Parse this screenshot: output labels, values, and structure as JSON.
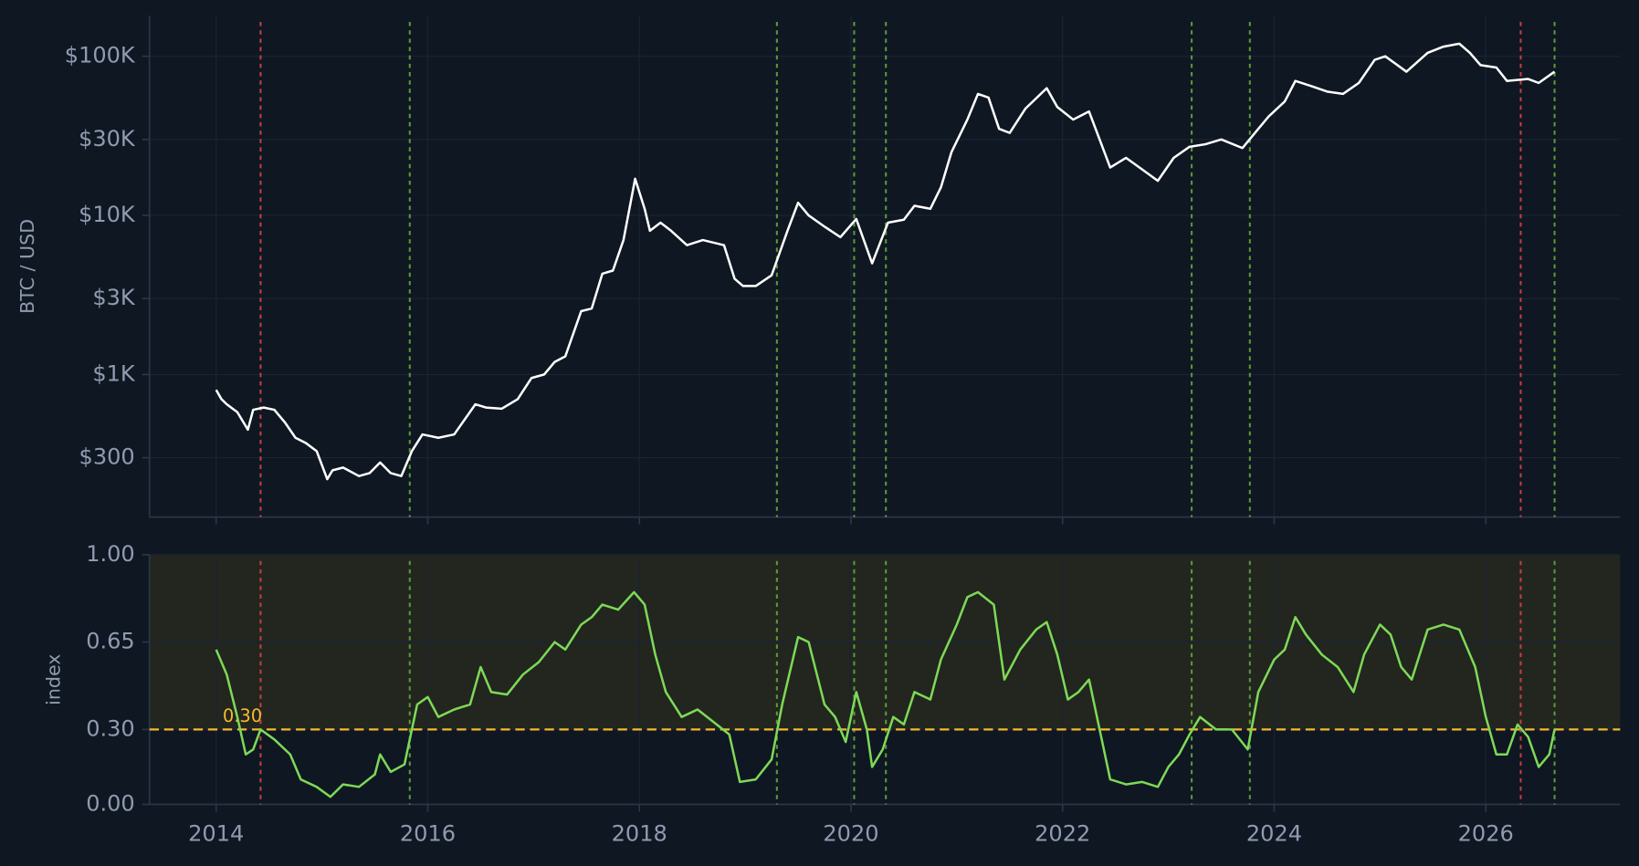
{
  "chart_data": [
    {
      "type": "line",
      "ylabel": "BTC / USD",
      "ylog": true,
      "grid": true,
      "xlim": [
        2013.37,
        2027.27
      ],
      "ylim": [
        127,
        180000
      ],
      "xticks": [
        2014,
        2016,
        2018,
        2020,
        2022,
        2024,
        2026
      ],
      "yticks": [
        {
          "value": 300,
          "label": "$300"
        },
        {
          "value": 1000,
          "label": "$1K"
        },
        {
          "value": 3000,
          "label": "$3K"
        },
        {
          "value": 10000,
          "label": "$10K"
        },
        {
          "value": 30000,
          "label": "$30K"
        },
        {
          "value": 100000,
          "label": "$100K"
        }
      ],
      "vlines": [
        {
          "x": 2014.42,
          "color": "#c0403f"
        },
        {
          "x": 2015.83,
          "color": "#5a9a3a"
        },
        {
          "x": 2019.3,
          "color": "#5a9a3a"
        },
        {
          "x": 2020.03,
          "color": "#5a9a3a"
        },
        {
          "x": 2020.33,
          "color": "#5a9a3a"
        },
        {
          "x": 2023.22,
          "color": "#5a9a3a"
        },
        {
          "x": 2023.77,
          "color": "#5a9a3a"
        },
        {
          "x": 2026.33,
          "color": "#c0403f"
        },
        {
          "x": 2026.65,
          "color": "#5a9a3a"
        }
      ],
      "x": [
        2014.0,
        2014.05,
        2014.1,
        2014.2,
        2014.3,
        2014.35,
        2014.45,
        2014.55,
        2014.65,
        2014.75,
        2014.85,
        2014.95,
        2015.05,
        2015.1,
        2015.2,
        2015.35,
        2015.45,
        2015.55,
        2015.65,
        2015.75,
        2015.85,
        2015.95,
        2016.1,
        2016.25,
        2016.45,
        2016.55,
        2016.7,
        2016.85,
        2016.98,
        2017.1,
        2017.2,
        2017.3,
        2017.45,
        2017.55,
        2017.65,
        2017.75,
        2017.85,
        2017.96,
        2018.05,
        2018.1,
        2018.2,
        2018.3,
        2018.45,
        2018.6,
        2018.8,
        2018.9,
        2018.98,
        2019.1,
        2019.25,
        2019.4,
        2019.5,
        2019.6,
        2019.75,
        2019.9,
        2020.05,
        2020.2,
        2020.35,
        2020.5,
        2020.6,
        2020.75,
        2020.85,
        2020.95,
        2021.1,
        2021.2,
        2021.3,
        2021.4,
        2021.5,
        2021.65,
        2021.85,
        2021.95,
        2022.1,
        2022.25,
        2022.35,
        2022.45,
        2022.6,
        2022.75,
        2022.9,
        2023.05,
        2023.2,
        2023.35,
        2023.5,
        2023.7,
        2023.85,
        2023.95,
        2024.1,
        2024.2,
        2024.35,
        2024.5,
        2024.65,
        2024.8,
        2024.95,
        2025.05,
        2025.25,
        2025.45,
        2025.6,
        2025.75,
        2025.85,
        2025.95,
        2026.1,
        2026.2,
        2026.4,
        2026.5,
        2026.65
      ],
      "series": [
        {
          "color": "#ffffff",
          "values": [
            800,
            700,
            650,
            580,
            450,
            600,
            620,
            600,
            500,
            400,
            370,
            330,
            220,
            250,
            260,
            230,
            240,
            280,
            240,
            230,
            330,
            420,
            400,
            420,
            650,
            620,
            610,
            700,
            950,
            1000,
            1200,
            1300,
            2500,
            2600,
            4300,
            4500,
            7000,
            17000,
            11000,
            8000,
            9000,
            8000,
            6500,
            7000,
            6500,
            4000,
            3600,
            3600,
            4200,
            8000,
            12000,
            10000,
            8500,
            7300,
            9500,
            5000,
            9000,
            9400,
            11500,
            11000,
            15000,
            25000,
            40000,
            58000,
            55000,
            35000,
            33000,
            47000,
            63000,
            48000,
            40000,
            45000,
            30000,
            20000,
            23000,
            19500,
            16500,
            23000,
            27000,
            28000,
            30000,
            26500,
            35000,
            42000,
            52000,
            70000,
            65000,
            60000,
            58000,
            68000,
            95000,
            100000,
            80000,
            105000,
            115000,
            120000,
            105000,
            88000,
            85000,
            70000,
            72000,
            68000,
            80000
          ]
        }
      ]
    },
    {
      "type": "line",
      "ylabel": "index",
      "grid": true,
      "xlim": [
        2013.37,
        2027.27
      ],
      "ylim": [
        0,
        1
      ],
      "xticks": [
        2014,
        2016,
        2018,
        2020,
        2022,
        2024,
        2026
      ],
      "yticks": [
        {
          "value": 0,
          "label": "0.00"
        },
        {
          "value": 0.3,
          "label": "0.30"
        },
        0.65,
        {
          "value": 1,
          "label": "1.00"
        }
      ],
      "threshold": {
        "value": 0.3,
        "label": "0.30",
        "color": "#f5b92e"
      },
      "vlines": [
        {
          "x": 2014.42,
          "color": "#c0403f"
        },
        {
          "x": 2015.83,
          "color": "#5a9a3a"
        },
        {
          "x": 2019.3,
          "color": "#5a9a3a"
        },
        {
          "x": 2020.03,
          "color": "#5a9a3a"
        },
        {
          "x": 2020.33,
          "color": "#5a9a3a"
        },
        {
          "x": 2023.22,
          "color": "#5a9a3a"
        },
        {
          "x": 2023.77,
          "color": "#5a9a3a"
        },
        {
          "x": 2026.33,
          "color": "#c0403f"
        },
        {
          "x": 2026.65,
          "color": "#5a9a3a"
        }
      ],
      "x": [
        2014.0,
        2014.1,
        2014.2,
        2014.28,
        2014.35,
        2014.42,
        2014.55,
        2014.7,
        2014.8,
        2014.95,
        2015.08,
        2015.2,
        2015.35,
        2015.5,
        2015.55,
        2015.65,
        2015.78,
        2015.9,
        2016.0,
        2016.1,
        2016.25,
        2016.4,
        2016.5,
        2016.6,
        2016.75,
        2016.9,
        2017.05,
        2017.2,
        2017.3,
        2017.45,
        2017.55,
        2017.65,
        2017.8,
        2017.95,
        2018.05,
        2018.15,
        2018.25,
        2018.4,
        2018.55,
        2018.7,
        2018.85,
        2018.95,
        2019.1,
        2019.25,
        2019.35,
        2019.5,
        2019.6,
        2019.75,
        2019.85,
        2019.95,
        2020.05,
        2020.15,
        2020.2,
        2020.3,
        2020.4,
        2020.5,
        2020.6,
        2020.75,
        2020.85,
        2021.0,
        2021.1,
        2021.2,
        2021.35,
        2021.45,
        2021.6,
        2021.75,
        2021.85,
        2021.95,
        2022.05,
        2022.15,
        2022.25,
        2022.35,
        2022.45,
        2022.6,
        2022.75,
        2022.9,
        2023.0,
        2023.1,
        2023.2,
        2023.3,
        2023.45,
        2023.6,
        2023.75,
        2023.85,
        2024.0,
        2024.1,
        2024.2,
        2024.3,
        2024.45,
        2024.6,
        2024.75,
        2024.85,
        2025.0,
        2025.1,
        2025.2,
        2025.3,
        2025.45,
        2025.6,
        2025.75,
        2025.9,
        2026.0,
        2026.1,
        2026.2,
        2026.3,
        2026.4,
        2026.5,
        2026.6,
        2026.65
      ],
      "series": [
        {
          "color": "#7ed957",
          "values": [
            0.62,
            0.52,
            0.35,
            0.2,
            0.22,
            0.3,
            0.26,
            0.2,
            0.1,
            0.07,
            0.03,
            0.08,
            0.07,
            0.12,
            0.2,
            0.13,
            0.16,
            0.4,
            0.43,
            0.35,
            0.38,
            0.4,
            0.55,
            0.45,
            0.44,
            0.52,
            0.57,
            0.65,
            0.62,
            0.72,
            0.75,
            0.8,
            0.78,
            0.85,
            0.8,
            0.6,
            0.45,
            0.35,
            0.38,
            0.33,
            0.28,
            0.09,
            0.1,
            0.18,
            0.4,
            0.67,
            0.65,
            0.4,
            0.35,
            0.25,
            0.45,
            0.3,
            0.15,
            0.22,
            0.35,
            0.32,
            0.45,
            0.42,
            0.58,
            0.72,
            0.83,
            0.85,
            0.8,
            0.5,
            0.62,
            0.7,
            0.73,
            0.6,
            0.42,
            0.45,
            0.5,
            0.3,
            0.1,
            0.08,
            0.09,
            0.07,
            0.15,
            0.2,
            0.28,
            0.35,
            0.3,
            0.3,
            0.22,
            0.45,
            0.58,
            0.62,
            0.75,
            0.68,
            0.6,
            0.55,
            0.45,
            0.6,
            0.72,
            0.68,
            0.55,
            0.5,
            0.7,
            0.72,
            0.7,
            0.55,
            0.35,
            0.2,
            0.2,
            0.32,
            0.27,
            0.15,
            0.2,
            0.3
          ]
        }
      ]
    }
  ]
}
